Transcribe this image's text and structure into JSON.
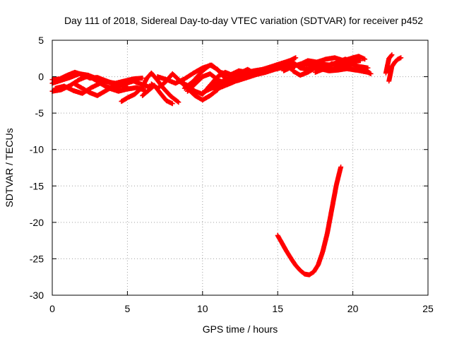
{
  "chart_data": {
    "type": "scatter",
    "title": "Day 111 of 2018, Sidereal Day-to-day VTEC variation (SDTVAR) for receiver p452",
    "xlabel": "GPS time / hours",
    "ylabel": "SDTVAR / TECUs",
    "xlim": [
      0,
      25
    ],
    "ylim": [
      -30,
      5
    ],
    "xticks": [
      0,
      5,
      10,
      15,
      20,
      25
    ],
    "yticks": [
      -30,
      -25,
      -20,
      -15,
      -10,
      -5,
      0,
      5
    ],
    "grid": true,
    "marker": "plus",
    "series": [
      {
        "color": "#ff0000",
        "tracks": [
          [
            [
              0.0,
              -2.0
            ],
            [
              0.6,
              -1.8
            ],
            [
              1.2,
              -1.2
            ],
            [
              1.8,
              -0.4
            ],
            [
              2.4,
              0.1
            ],
            [
              3.0,
              -0.6
            ],
            [
              3.6,
              -1.4
            ],
            [
              4.2,
              -1.6
            ],
            [
              4.8,
              -1.0
            ],
            [
              5.4,
              -0.6
            ],
            [
              6.0,
              -1.1
            ],
            [
              6.6,
              -1.5
            ]
          ],
          [
            [
              0.0,
              -0.9
            ],
            [
              0.6,
              -0.5
            ],
            [
              1.2,
              -0.1
            ],
            [
              1.8,
              0.4
            ],
            [
              2.4,
              0.2
            ],
            [
              3.0,
              -0.3
            ],
            [
              3.6,
              -0.7
            ],
            [
              4.2,
              -0.9
            ],
            [
              4.8,
              -0.6
            ],
            [
              5.4,
              -0.3
            ],
            [
              6.0,
              -0.2
            ]
          ],
          [
            [
              0.2,
              -1.6
            ],
            [
              0.8,
              -1.3
            ],
            [
              1.4,
              -1.9
            ],
            [
              2.0,
              -2.3
            ],
            [
              2.6,
              -1.5
            ],
            [
              3.2,
              -0.9
            ],
            [
              3.8,
              -1.6
            ],
            [
              4.4,
              -2.0
            ],
            [
              5.0,
              -1.7
            ],
            [
              5.6,
              -1.5
            ],
            [
              6.2,
              -1.9
            ]
          ],
          [
            [
              0.0,
              -0.4
            ],
            [
              0.5,
              -0.3
            ],
            [
              1.0,
              0.2
            ],
            [
              1.5,
              0.6
            ],
            [
              2.0,
              0.3
            ],
            [
              2.5,
              -0.2
            ],
            [
              3.0,
              -0.1
            ],
            [
              3.5,
              -0.5
            ],
            [
              4.0,
              -0.9
            ],
            [
              4.5,
              -1.2
            ],
            [
              5.0,
              -1.4
            ]
          ],
          [
            [
              1.5,
              -1.0
            ],
            [
              2.0,
              -1.6
            ],
            [
              2.5,
              -2.2
            ],
            [
              3.0,
              -2.6
            ],
            [
              3.5,
              -2.0
            ],
            [
              4.0,
              -1.4
            ]
          ],
          [
            [
              4.6,
              -3.4
            ],
            [
              5.0,
              -2.9
            ],
            [
              5.5,
              -2.4
            ],
            [
              6.0,
              -1.4
            ],
            [
              6.3,
              -0.2
            ],
            [
              6.6,
              0.5
            ],
            [
              7.0,
              -0.5
            ],
            [
              7.4,
              -1.6
            ],
            [
              7.9,
              -2.7
            ],
            [
              8.4,
              -3.5
            ]
          ],
          [
            [
              6.0,
              -2.6
            ],
            [
              6.4,
              -1.9
            ],
            [
              6.8,
              -1.2
            ],
            [
              7.2,
              -2.3
            ],
            [
              7.6,
              -3.3
            ],
            [
              8.0,
              -3.7
            ]
          ],
          [
            [
              6.6,
              -1.0
            ],
            [
              7.0,
              -1.6
            ],
            [
              7.5,
              -0.8
            ],
            [
              8.0,
              0.4
            ],
            [
              8.5,
              -0.6
            ],
            [
              9.0,
              -1.6
            ],
            [
              9.5,
              -2.6
            ],
            [
              10.0,
              -3.2
            ],
            [
              10.5,
              -2.6
            ],
            [
              11.0,
              -1.8
            ]
          ],
          [
            [
              7.0,
              0.0
            ],
            [
              7.6,
              -0.4
            ],
            [
              8.2,
              -0.9
            ],
            [
              8.8,
              -0.3
            ],
            [
              9.4,
              0.5
            ],
            [
              10.0,
              1.2
            ],
            [
              10.6,
              1.6
            ],
            [
              11.2,
              0.6
            ],
            [
              11.8,
              0.2
            ],
            [
              12.4,
              0.8
            ],
            [
              13.0,
              0.6
            ],
            [
              13.5,
              0.3
            ]
          ],
          [
            [
              8.4,
              -0.6
            ],
            [
              9.0,
              -1.2
            ],
            [
              9.5,
              -2.0
            ],
            [
              10.0,
              -2.4
            ],
            [
              10.5,
              -1.2
            ],
            [
              11.0,
              0.0
            ],
            [
              11.5,
              0.6
            ],
            [
              12.0,
              0.2
            ],
            [
              12.6,
              0.4
            ],
            [
              13.2,
              0.2
            ]
          ],
          [
            [
              9.0,
              -2.0
            ],
            [
              9.5,
              -1.0
            ],
            [
              10.0,
              0.0
            ],
            [
              10.5,
              0.4
            ],
            [
              11.0,
              -0.4
            ],
            [
              11.5,
              -1.0
            ],
            [
              12.0,
              -0.3
            ],
            [
              12.5,
              0.5
            ],
            [
              13.0,
              1.0
            ],
            [
              13.5,
              0.4
            ]
          ],
          [
            [
              8.8,
              -1.6
            ],
            [
              9.4,
              -0.6
            ],
            [
              10.0,
              0.8
            ],
            [
              10.5,
              1.6
            ],
            [
              11.0,
              1.0
            ],
            [
              11.4,
              0.0
            ],
            [
              11.8,
              -0.6
            ]
          ],
          [
            [
              10.0,
              -2.2
            ],
            [
              10.6,
              -1.6
            ],
            [
              11.2,
              -1.2
            ],
            [
              11.8,
              -0.8
            ],
            [
              12.4,
              -0.5
            ],
            [
              13.0,
              -0.1
            ],
            [
              13.6,
              0.3
            ],
            [
              14.2,
              0.6
            ],
            [
              14.8,
              1.0
            ],
            [
              15.4,
              1.3
            ],
            [
              16.0,
              1.6
            ]
          ],
          [
            [
              10.4,
              -1.4
            ],
            [
              11.0,
              -0.9
            ],
            [
              11.6,
              -0.4
            ],
            [
              12.2,
              0.1
            ],
            [
              12.8,
              0.5
            ],
            [
              13.4,
              0.8
            ],
            [
              14.0,
              1.0
            ],
            [
              14.6,
              1.4
            ],
            [
              15.2,
              1.8
            ],
            [
              15.8,
              2.2
            ],
            [
              16.2,
              2.6
            ]
          ],
          [
            [
              10.8,
              -1.8
            ],
            [
              11.4,
              -1.3
            ],
            [
              12.0,
              -0.8
            ],
            [
              12.6,
              -0.2
            ],
            [
              13.2,
              0.4
            ],
            [
              13.8,
              0.9
            ],
            [
              14.4,
              1.2
            ],
            [
              15.0,
              1.5
            ],
            [
              15.5,
              1.3
            ],
            [
              16.0,
              1.1
            ]
          ],
          [
            [
              15.0,
              1.2
            ],
            [
              15.5,
              1.8
            ],
            [
              16.0,
              2.0
            ],
            [
              16.5,
              1.2
            ],
            [
              17.0,
              1.0
            ],
            [
              17.5,
              1.5
            ],
            [
              18.0,
              1.7
            ],
            [
              18.5,
              1.6
            ],
            [
              19.0,
              2.0
            ],
            [
              19.5,
              2.4
            ],
            [
              20.0,
              2.1
            ],
            [
              20.5,
              2.2
            ]
          ],
          [
            [
              16.0,
              0.8
            ],
            [
              16.5,
              0.2
            ],
            [
              17.0,
              0.6
            ],
            [
              17.5,
              1.2
            ],
            [
              18.0,
              1.4
            ],
            [
              18.5,
              1.0
            ],
            [
              19.0,
              1.2
            ],
            [
              19.5,
              1.4
            ],
            [
              20.0,
              1.0
            ],
            [
              20.5,
              0.8
            ],
            [
              21.0,
              0.6
            ],
            [
              21.2,
              0.4
            ]
          ],
          [
            [
              16.4,
              1.6
            ],
            [
              17.0,
              2.2
            ],
            [
              17.6,
              2.0
            ],
            [
              18.2,
              2.4
            ],
            [
              18.8,
              2.6
            ],
            [
              19.4,
              2.2
            ],
            [
              20.0,
              2.6
            ],
            [
              20.4,
              2.8
            ],
            [
              20.8,
              2.4
            ]
          ],
          [
            [
              15.4,
              0.8
            ],
            [
              16.0,
              1.4
            ],
            [
              16.6,
              1.8
            ],
            [
              17.2,
              1.6
            ],
            [
              17.8,
              1.1
            ],
            [
              18.4,
              0.8
            ],
            [
              19.0,
              0.9
            ],
            [
              19.6,
              1.1
            ],
            [
              20.2,
              0.9
            ],
            [
              20.8,
              1.0
            ],
            [
              21.0,
              0.8
            ]
          ],
          [
            [
              17.5,
              0.6
            ],
            [
              18.0,
              1.0
            ],
            [
              18.6,
              1.8
            ],
            [
              19.2,
              1.6
            ],
            [
              19.8,
              1.8
            ],
            [
              20.4,
              1.4
            ],
            [
              21.0,
              1.2
            ]
          ],
          [
            [
              22.4,
              -0.6
            ],
            [
              22.5,
              0.4
            ],
            [
              22.6,
              1.4
            ],
            [
              22.8,
              2.0
            ],
            [
              23.0,
              2.4
            ],
            [
              23.2,
              2.6
            ]
          ],
          [
            [
              22.2,
              0.5
            ],
            [
              22.3,
              1.5
            ],
            [
              22.4,
              2.5
            ],
            [
              22.6,
              3.0
            ]
          ],
          [
            [
              15.0,
              -21.8
            ],
            [
              15.3,
              -22.9
            ],
            [
              15.6,
              -24.0
            ],
            [
              15.9,
              -25.0
            ],
            [
              16.2,
              -25.9
            ],
            [
              16.5,
              -26.6
            ],
            [
              16.8,
              -27.1
            ],
            [
              17.1,
              -27.2
            ],
            [
              17.4,
              -26.8
            ],
            [
              17.7,
              -25.8
            ],
            [
              18.0,
              -24.0
            ],
            [
              18.3,
              -21.5
            ],
            [
              18.6,
              -18.2
            ],
            [
              18.9,
              -14.9
            ],
            [
              19.2,
              -12.4
            ]
          ]
        ]
      }
    ]
  }
}
